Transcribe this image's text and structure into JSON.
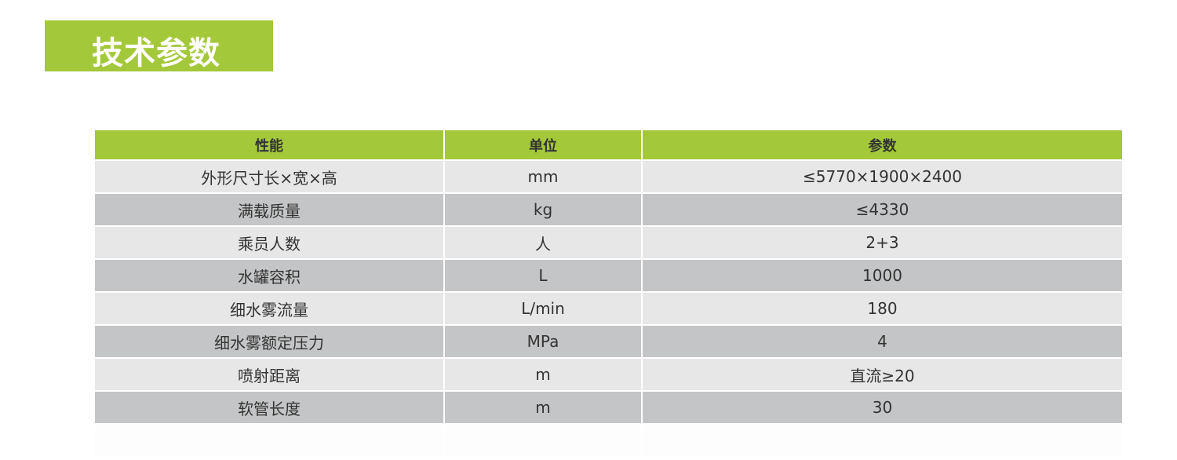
{
  "title": "技术参数",
  "colors": {
    "accent": "#a3c93a",
    "row_light": "#e8e7e8",
    "row_dark": "#c4c5c6"
  },
  "table": {
    "headers": [
      "性能",
      "单位",
      "参数"
    ],
    "rows": [
      [
        "外形尺寸长×宽×高",
        "mm",
        "≤5770×1900×2400"
      ],
      [
        "满载质量",
        "kg",
        "≤4330"
      ],
      [
        "乘员人数",
        "人",
        "2+3"
      ],
      [
        "水罐容积",
        "L",
        "1000"
      ],
      [
        "细水雾流量",
        "L/min",
        "180"
      ],
      [
        "细水雾额定压力",
        "MPa",
        "4"
      ],
      [
        "喷射距离",
        "m",
        "直流≥20"
      ],
      [
        "软管长度",
        "m",
        "30"
      ]
    ]
  }
}
